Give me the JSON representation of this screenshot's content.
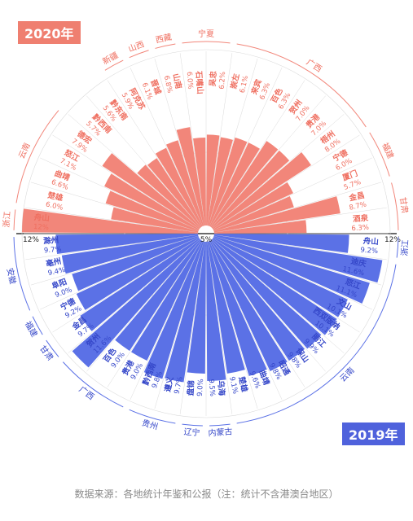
{
  "badges": {
    "top": "2020年",
    "bottom": "2019年"
  },
  "source": "数据来源：各地统计年鉴和公报（注：统计不含港澳台地区）",
  "colors": {
    "top": "#f2867a",
    "bottom": "#5b71e6",
    "top_text": "#ef6f60",
    "bottom_text": "#3547c9",
    "grid": "#d9d9d9"
  },
  "chart_data": [
    {
      "type": "radial-bar",
      "title": "2020年",
      "scale_labels": [
        "12%",
        "5%",
        "12%"
      ],
      "categories": [
        "舟山",
        "楚雄",
        "曲靖",
        "怒江",
        "德宏",
        "黔西南",
        "黔东南",
        "阿克苏",
        "晋城",
        "山南",
        "石嘴山",
        "吴忠",
        "崇左",
        "来宾",
        "百色",
        "贺州",
        "贵港",
        "梧州",
        "宁德",
        "厦门",
        "金昌",
        "酒泉"
      ],
      "values": [
        12,
        6.0,
        6.6,
        7.1,
        7.9,
        5.7,
        5.6,
        5.9,
        6.1,
        6.8,
        6.0,
        6.2,
        6.1,
        6.3,
        6.3,
        7.0,
        7.0,
        8.0,
        6.0,
        5.7,
        8.7,
        6.3
      ],
      "value_labels": [
        "12%",
        "6.0%",
        "6.6%",
        "7.1%",
        "7.9%",
        "5.7%",
        "5.6%",
        "5.9%",
        "6.1%",
        "6.8%",
        "6.0%",
        "6.2%",
        "6.1%",
        "6.3%",
        "6.3%",
        "7.0%",
        "7.0%",
        "8.0%",
        "6.0%",
        "5.7%",
        "8.7%",
        "6.3%"
      ],
      "provinces": [
        {
          "name": "浙江",
          "from": 0,
          "to": 0
        },
        {
          "name": "云南",
          "from": 1,
          "to": 4
        },
        {
          "name": "新疆",
          "from": 7,
          "to": 7
        },
        {
          "name": "山西",
          "from": 8,
          "to": 8
        },
        {
          "name": "西藏",
          "from": 9,
          "to": 9
        },
        {
          "name": "宁夏",
          "from": 10,
          "to": 11
        },
        {
          "name": "广西",
          "from": 12,
          "to": 17
        },
        {
          "name": "福建",
          "from": 18,
          "to": 19
        },
        {
          "name": "甘肃",
          "from": 20,
          "to": 21
        }
      ]
    },
    {
      "type": "radial-bar",
      "title": "2019年",
      "categories": [
        "滁州",
        "亳州",
        "阜阳",
        "宁德",
        "金昌",
        "贺州",
        "百色",
        "贵港",
        "黔西南",
        "遵义",
        "盘锦",
        "乌海",
        "楚雄",
        "曲靖",
        "昭通",
        "保山",
        "丽江",
        "西双版纳",
        "文山",
        "怒江",
        "迪庆",
        "舟山"
      ],
      "values": [
        9.7,
        9.4,
        9.0,
        9.2,
        9.7,
        11.6,
        9.0,
        9.0,
        9.8,
        9.7,
        9.0,
        9.5,
        9.1,
        9.6,
        9.8,
        9.8,
        9.9,
        10.1,
        10.1,
        11.1,
        11.6,
        9.2
      ],
      "value_labels": [
        "9.7%",
        "9.4%",
        "9.0%",
        "9.2%",
        "9.7%",
        "11.6%",
        "9.0%",
        "9.0%",
        "9.8%",
        "9.7%",
        "9.0%",
        "9.5%",
        "9.1%",
        "9.6%",
        "9.8%",
        "9.8%",
        "9.9%",
        "10.1%",
        "10.1%",
        "11.1%",
        "11.6%",
        "9.2%"
      ],
      "provinces": [
        {
          "name": "安徽",
          "from": 0,
          "to": 2
        },
        {
          "name": "福建",
          "from": 3,
          "to": 3
        },
        {
          "name": "甘肃",
          "from": 4,
          "to": 4
        },
        {
          "name": "广西",
          "from": 5,
          "to": 7
        },
        {
          "name": "贵州",
          "from": 8,
          "to": 9
        },
        {
          "name": "辽宁",
          "from": 10,
          "to": 10
        },
        {
          "name": "内蒙古",
          "from": 11,
          "to": 11
        },
        {
          "name": "云南",
          "from": 12,
          "to": 20
        },
        {
          "name": "浙江",
          "from": 21,
          "to": 21
        }
      ]
    }
  ]
}
